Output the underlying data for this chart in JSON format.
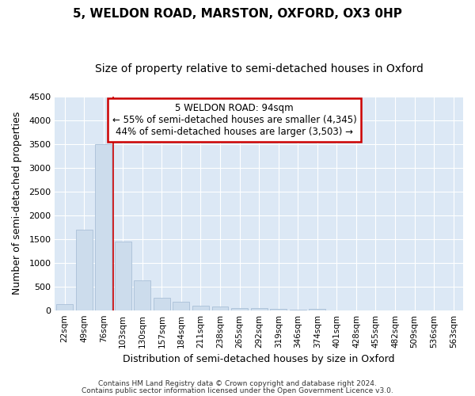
{
  "title": "5, WELDON ROAD, MARSTON, OXFORD, OX3 0HP",
  "subtitle": "Size of property relative to semi-detached houses in Oxford",
  "xlabel": "Distribution of semi-detached houses by size in Oxford",
  "ylabel": "Number of semi-detached properties",
  "bar_color": "#ccdcec",
  "bar_edge_color": "#aac0d8",
  "categories": [
    "22sqm",
    "49sqm",
    "76sqm",
    "103sqm",
    "130sqm",
    "157sqm",
    "184sqm",
    "211sqm",
    "238sqm",
    "265sqm",
    "292sqm",
    "319sqm",
    "346sqm",
    "374sqm",
    "401sqm",
    "428sqm",
    "455sqm",
    "482sqm",
    "509sqm",
    "536sqm",
    "563sqm"
  ],
  "values": [
    125,
    1700,
    3500,
    1450,
    620,
    265,
    170,
    100,
    80,
    50,
    40,
    20,
    10,
    30,
    3,
    2,
    1,
    1,
    1,
    0,
    0
  ],
  "ylim": [
    0,
    4500
  ],
  "yticks": [
    0,
    500,
    1000,
    1500,
    2000,
    2500,
    3000,
    3500,
    4000,
    4500
  ],
  "annotation_title": "5 WELDON ROAD: 94sqm",
  "annotation_line1": "← 55% of semi-detached houses are smaller (4,345)",
  "annotation_line2": "44% of semi-detached houses are larger (3,503) →",
  "vline_pos": 2.5,
  "vline_color": "#cc0000",
  "annotation_box_facecolor": "#ffffff",
  "annotation_box_edgecolor": "#cc0000",
  "bg_color": "#dce8f5",
  "footer1": "Contains HM Land Registry data © Crown copyright and database right 2024.",
  "footer2": "Contains public sector information licensed under the Open Government Licence v3.0.",
  "title_fontsize": 11,
  "subtitle_fontsize": 10,
  "grid_color": "#ffffff"
}
